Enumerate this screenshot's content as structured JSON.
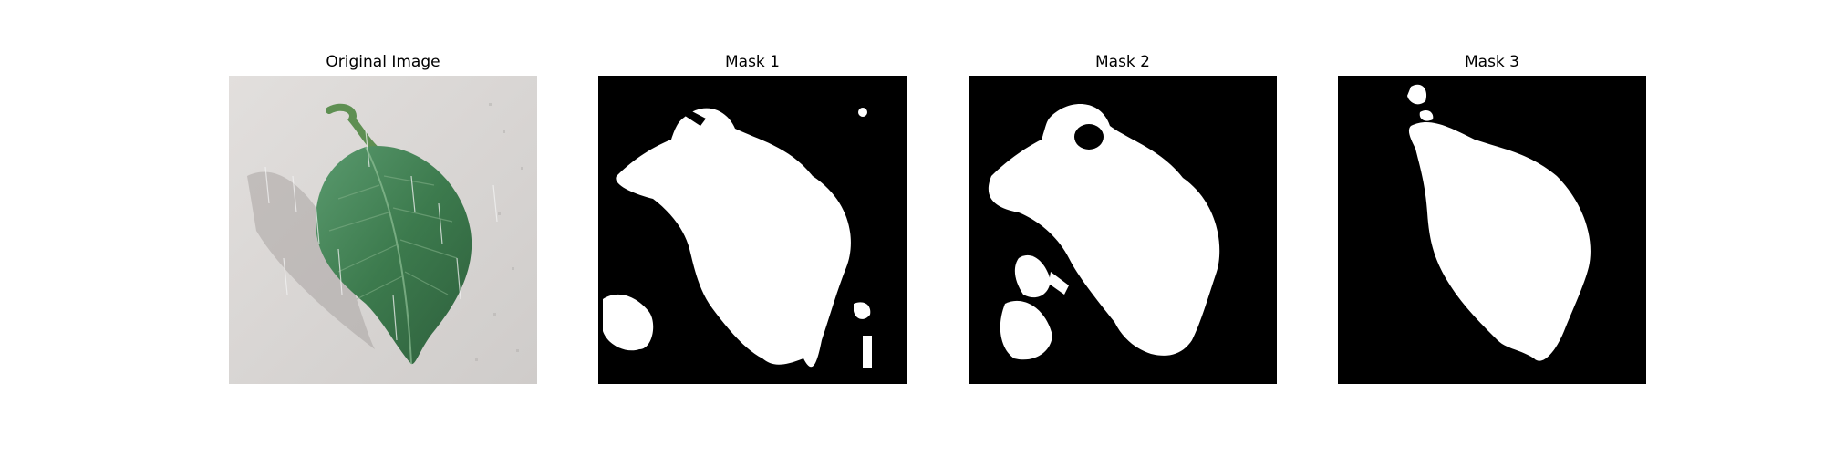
{
  "panels": [
    {
      "title": "Original Image",
      "type": "photo",
      "subject": "leaf-image"
    },
    {
      "title": "Mask 1",
      "type": "mask"
    },
    {
      "title": "Mask 2",
      "type": "mask"
    },
    {
      "title": "Mask 3",
      "type": "mask"
    }
  ],
  "colors": {
    "mask_background": "#000000",
    "mask_foreground": "#ffffff",
    "leaf_green": "#3e7a4e",
    "backdrop_gray": "#d9d6d4"
  }
}
